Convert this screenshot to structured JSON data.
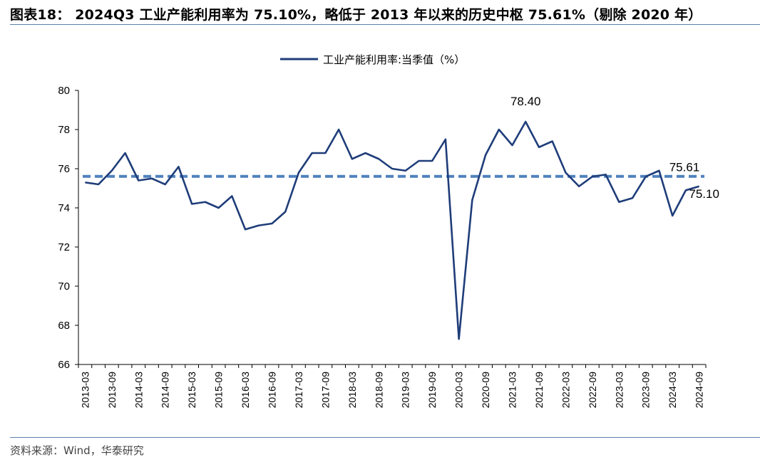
{
  "header": {
    "title": "图表18： 2024Q3 工业产能利用率为 75.10%，略低于 2013 年以来的历史中枢 75.61%（剔除 2020 年）"
  },
  "footer": {
    "source": "资料来源：Wind，华泰研究"
  },
  "colors": {
    "series_line": "#1f3d7a",
    "reference_line": "#4f81bd",
    "rule": "#5b7fa8"
  },
  "chart_data": {
    "type": "line",
    "legend_placement": "top-center",
    "grid": false,
    "ylim": [
      66,
      80
    ],
    "yticks": [
      66,
      68,
      70,
      72,
      74,
      76,
      78,
      80
    ],
    "categories": [
      "2013-03",
      "2013-06",
      "2013-09",
      "2013-12",
      "2014-03",
      "2014-06",
      "2014-09",
      "2014-12",
      "2015-03",
      "2015-06",
      "2015-09",
      "2015-12",
      "2016-03",
      "2016-06",
      "2016-09",
      "2016-12",
      "2017-03",
      "2017-06",
      "2017-09",
      "2017-12",
      "2018-03",
      "2018-06",
      "2018-09",
      "2018-12",
      "2019-03",
      "2019-06",
      "2019-09",
      "2019-12",
      "2020-03",
      "2020-06",
      "2020-09",
      "2020-12",
      "2021-03",
      "2021-06",
      "2021-09",
      "2021-12",
      "2022-03",
      "2022-06",
      "2022-09",
      "2022-12",
      "2023-03",
      "2023-06",
      "2023-09",
      "2023-12",
      "2024-03",
      "2024-06",
      "2024-09"
    ],
    "xtick_labels": [
      "2013-03",
      "2013-09",
      "2014-03",
      "2014-09",
      "2015-03",
      "2015-09",
      "2016-03",
      "2016-09",
      "2017-03",
      "2017-09",
      "2018-03",
      "2018-09",
      "2019-03",
      "2019-09",
      "2020-03",
      "2020-09",
      "2021-03",
      "2021-09",
      "2022-03",
      "2022-09",
      "2023-03",
      "2023-09",
      "2024-03",
      "2024-09"
    ],
    "series": [
      {
        "name": "工业产能利用率:当季值（%）",
        "values": [
          75.3,
          75.2,
          75.9,
          76.8,
          75.4,
          75.5,
          75.2,
          76.1,
          74.2,
          74.3,
          74.0,
          74.6,
          72.9,
          73.1,
          73.2,
          73.8,
          75.8,
          76.8,
          76.8,
          78.0,
          76.5,
          76.8,
          76.5,
          76.0,
          75.9,
          76.4,
          76.4,
          77.5,
          67.3,
          74.4,
          76.7,
          78.0,
          77.2,
          78.4,
          77.1,
          77.4,
          75.8,
          75.1,
          75.6,
          75.7,
          74.3,
          74.5,
          75.6,
          75.9,
          73.6,
          74.9,
          75.1
        ]
      }
    ],
    "reference_line": {
      "value": 75.61
    },
    "annotations": {
      "peak_label": "78.40",
      "reference_label": "75.61",
      "last_label": "75.10"
    }
  }
}
